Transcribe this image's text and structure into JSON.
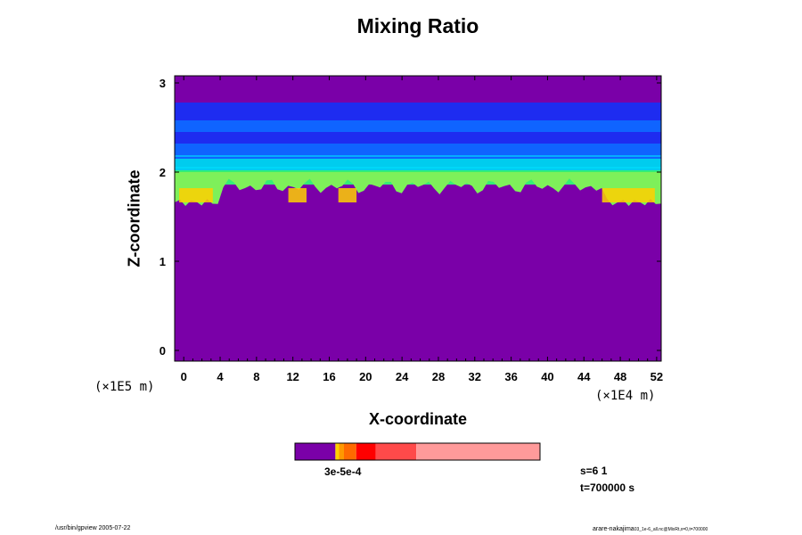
{
  "chart_data": {
    "type": "heatmap",
    "title": "Mixing Ratio",
    "xlabel": "X-coordinate",
    "ylabel": "Z-coordinate",
    "x_unit": "(×1E4 m)",
    "z_unit": "(×1E5 m)",
    "xlim": [
      -1,
      52.5
    ],
    "zlim": [
      -0.12,
      3.08
    ],
    "x_ticks": [
      0,
      4,
      8,
      12,
      16,
      20,
      24,
      28,
      32,
      36,
      40,
      44,
      48,
      52
    ],
    "z_ticks": [
      0,
      1,
      2,
      3
    ],
    "background_color": "#7a00a8",
    "bands": [
      {
        "z_bottom": 2.58,
        "z_top": 2.78,
        "color": "#1e2cf0"
      },
      {
        "z_bottom": 2.45,
        "z_top": 2.58,
        "color": "#0f64ff"
      },
      {
        "z_bottom": 2.32,
        "z_top": 2.45,
        "color": "#1e2cf0"
      },
      {
        "z_bottom": 2.15,
        "z_top": 2.32,
        "color": "#0f64ff"
      },
      {
        "z_bottom": 2.02,
        "z_top": 2.15,
        "color": "#00ccee"
      },
      {
        "z_bottom": 1.86,
        "z_top": 2.02,
        "color": "#33ee77"
      }
    ],
    "green_layer_color": "#7ef05a",
    "warm_patch_color": "#ffd000",
    "colorbar": {
      "segments": [
        {
          "from": 0.0,
          "to": 0.165,
          "color": "#7a00a8"
        },
        {
          "from": 0.165,
          "to": 0.18,
          "color": "#ffd000"
        },
        {
          "from": 0.18,
          "to": 0.2,
          "color": "#ff9900"
        },
        {
          "from": 0.2,
          "to": 0.25,
          "color": "#ff6a00"
        },
        {
          "from": 0.25,
          "to": 0.33,
          "color": "#ff0000"
        },
        {
          "from": 0.33,
          "to": 0.495,
          "color": "#ff4a4a"
        },
        {
          "from": 0.495,
          "to": 1.0,
          "color": "#ff9a9a"
        }
      ],
      "label": "3e-5e-4"
    }
  },
  "info": {
    "s_label": "s=6 1",
    "t_label": "t=700000 s"
  },
  "footer": {
    "left": "/usr/bin/gpview 2005-07-22",
    "right_main": "arare-nakajima",
    "right_small": "03_1e-6_all.nc@MixRt,x=0,t=700000"
  }
}
